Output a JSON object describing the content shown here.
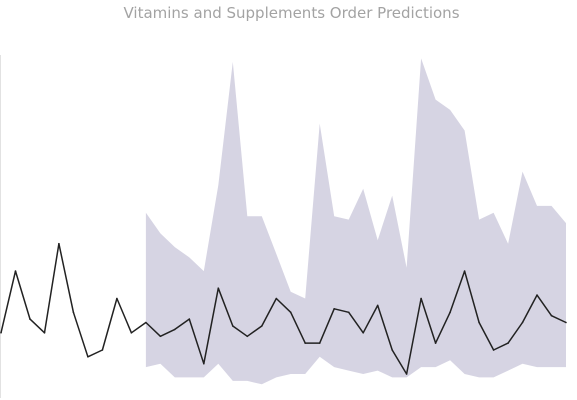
{
  "chart_data": {
    "type": "line",
    "title": "Vitamins and Supplements Order Predictions",
    "xlabel": "",
    "ylabel": "",
    "xlim": [
      0,
      39
    ],
    "ylim": [
      0,
      100
    ],
    "grid": false,
    "legend": "none",
    "colors": {
      "actual": "#222222",
      "band": "#d6d4e3"
    },
    "series": [
      {
        "kind": "line",
        "x": [
          0,
          1,
          2,
          3,
          4,
          5,
          6,
          7,
          8,
          9,
          10,
          11,
          12,
          13,
          14,
          15,
          16,
          17,
          18,
          19,
          20,
          21,
          22,
          23,
          24,
          25,
          26,
          27,
          28,
          29,
          30,
          31,
          32,
          33,
          34,
          35,
          36,
          37,
          38,
          39
        ],
        "values": [
          19,
          37,
          23,
          19,
          45,
          25,
          12,
          14,
          29,
          19,
          22,
          18,
          20,
          23,
          10,
          32,
          21,
          18,
          21,
          29,
          25,
          16,
          16,
          26,
          25,
          19,
          27,
          14,
          7,
          29,
          16,
          25,
          37,
          22,
          14,
          16,
          22,
          30,
          24,
          22
        ]
      },
      {
        "kind": "band",
        "x": [
          10,
          11,
          12,
          13,
          14,
          15,
          16,
          17,
          18,
          19,
          20,
          21,
          22,
          23,
          24,
          25,
          26,
          27,
          28,
          29,
          30,
          31,
          32,
          33,
          34,
          35,
          36,
          37,
          38,
          39
        ],
        "lower": [
          9,
          10,
          6,
          6,
          6,
          10,
          5,
          5,
          4,
          6,
          7,
          7,
          12,
          9,
          8,
          7,
          8,
          6,
          6,
          9,
          9,
          11,
          7,
          6,
          6,
          8,
          10,
          9,
          9,
          9
        ],
        "upper": [
          54,
          48,
          44,
          41,
          37,
          62,
          98,
          53,
          53,
          42,
          31,
          29,
          80,
          53,
          52,
          61,
          46,
          59,
          38,
          99,
          87,
          84,
          78,
          52,
          54,
          45,
          66,
          56,
          56,
          51
        ]
      }
    ]
  }
}
